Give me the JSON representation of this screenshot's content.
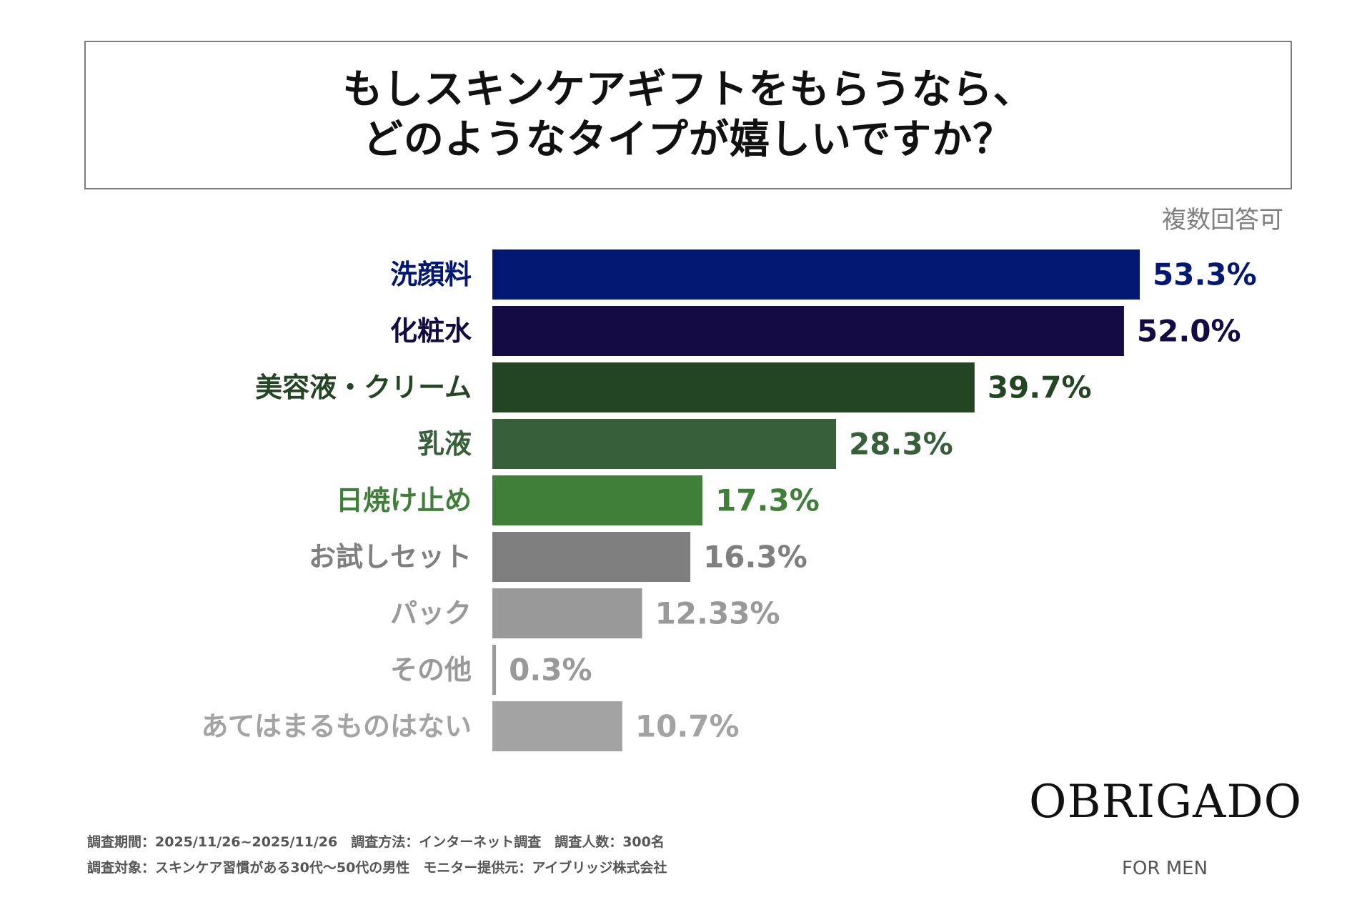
{
  "title": {
    "line1": "もしスキンケアギフトをもらうなら、",
    "line2": "どのようなタイプが嬉しいですか？"
  },
  "note": "複数回答可",
  "chart_data": {
    "type": "bar",
    "orientation": "horizontal",
    "title": "もしスキンケアギフトをもらうなら、どのようなタイプが嬉しいですか？",
    "xlim": [
      0,
      53.3
    ],
    "categories": [
      "洗顔料",
      "化粧水",
      "美容液・クリーム",
      "乳液",
      "日焼け止め",
      "お試しセット",
      "パック",
      "その他",
      "あてはまるものはない"
    ],
    "values": [
      53.3,
      52.0,
      39.7,
      28.3,
      17.3,
      16.3,
      12.33,
      0.3,
      10.7
    ],
    "value_labels": [
      "53.3%",
      "52.0%",
      "39.7%",
      "28.3%",
      "17.3%",
      "16.3%",
      "12.33%",
      "0.3%",
      "10.7%"
    ],
    "bar_colors": [
      "#031873",
      "#140b45",
      "#244524",
      "#37603a",
      "#3f7f3a",
      "#7f7f7f",
      "#999999",
      "#999999",
      "#a3a3a3"
    ],
    "label_colors": [
      "#031873",
      "#140b45",
      "#244524",
      "#37603a",
      "#3f7f3a",
      "#7f7f7f",
      "#999999",
      "#999999",
      "#a3a3a3"
    ]
  },
  "footer": {
    "line1": "調査期間：2025/11/26~2025/11/26　調査方法：インターネット調査　調査人数：300名",
    "line2": "調査対象：スキンケア習慣がある30代〜50代の男性　モニター提供元：アイブリッジ株式会社"
  },
  "brand": {
    "logo": "OBRIGADO",
    "sub": "FOR MEN"
  }
}
